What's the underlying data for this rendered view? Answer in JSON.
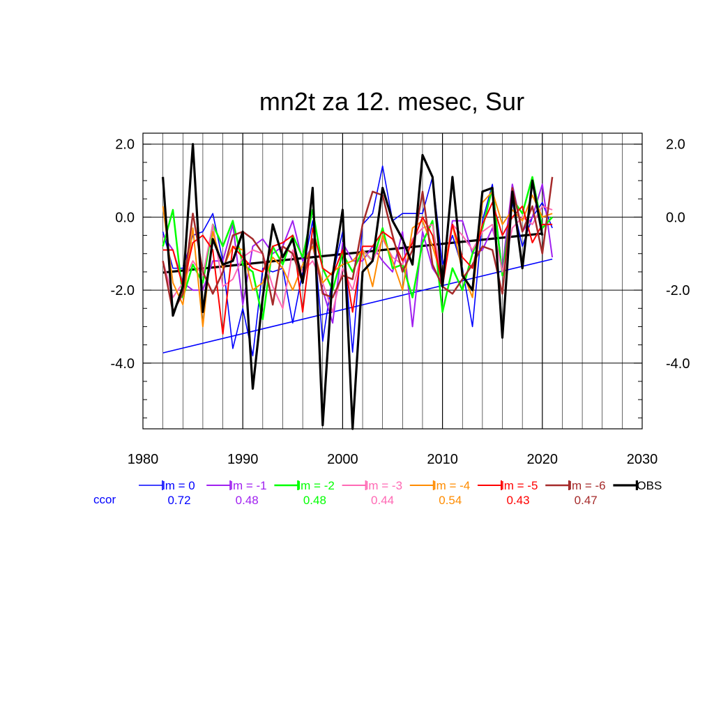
{
  "chart_data": {
    "type": "line",
    "title": "mn2t za 12. mesec, Sur",
    "xlim": [
      1980,
      2030
    ],
    "ylim": [
      -5.8,
      2.3
    ],
    "x_ticks": [
      "1980",
      "1990",
      "2000",
      "2010",
      "2020",
      "2030"
    ],
    "y_ticks": [
      "2.0",
      "0.0",
      "-2.0",
      "-4.0"
    ],
    "grid": true,
    "legend_placement": "below",
    "ccor_label": "ccor",
    "x": [
      1982,
      1983,
      1984,
      1985,
      1986,
      1987,
      1988,
      1989,
      1990,
      1991,
      1992,
      1993,
      1994,
      1995,
      1996,
      1997,
      1998,
      1999,
      2000,
      2001,
      2002,
      2003,
      2004,
      2005,
      2006,
      2007,
      2008,
      2009,
      2010,
      2011,
      2012,
      2013,
      2014,
      2015,
      2016,
      2017,
      2018,
      2019,
      2020,
      2021
    ],
    "series": [
      {
        "name": "lm = 0",
        "ccor": "0.72",
        "color": "#0000ff",
        "width": 1.6,
        "values": [
          -0.4,
          -1.4,
          -1.4,
          -0.5,
          -0.4,
          0.1,
          -1.2,
          -3.6,
          -2.5,
          -3.8,
          -1.4,
          -1.5,
          -1.4,
          -2.9,
          -1.5,
          -0.1,
          -3.4,
          -1.6,
          -0.4,
          -3.7,
          -0.2,
          0.1,
          1.4,
          -0.1,
          0.1,
          0.1,
          0.1,
          1.1,
          -1.3,
          -0.5,
          -1.4,
          -3.0,
          -0.1,
          0.9,
          -1.5,
          0.4,
          -0.8,
          0.0,
          0.4,
          -0.3
        ]
      },
      {
        "name": "lm = -1",
        "ccor": "0.48",
        "color": "#a020f0",
        "width": 2,
        "values": [
          -0.5,
          -0.9,
          -1.8,
          -2.0,
          -2.0,
          -1.2,
          -1.2,
          -0.2,
          -2.4,
          -0.8,
          -0.6,
          -1.0,
          -0.8,
          -0.1,
          -1.2,
          -0.8,
          -2.0,
          -2.9,
          -0.7,
          -1.2,
          -1.2,
          -0.8,
          -1.2,
          -1.5,
          -0.4,
          -3.0,
          -0.4,
          -1.4,
          -1.8,
          -0.1,
          -0.1,
          -1.0,
          -0.9,
          -0.3,
          -1.4,
          0.9,
          -0.4,
          0.0,
          0.9,
          -1.1
        ]
      },
      {
        "name": "lm = -2",
        "ccor": "0.48",
        "color": "#00ff00",
        "width": 2.5,
        "values": [
          -0.8,
          0.2,
          -2.2,
          -1.3,
          -1.8,
          -0.2,
          -0.8,
          -0.1,
          -1.3,
          -1.5,
          -2.8,
          -0.8,
          -1.3,
          -0.5,
          -1.1,
          0.2,
          -1.4,
          -2.0,
          -1.0,
          -1.5,
          -0.9,
          -1.2,
          -0.3,
          -1.4,
          -1.3,
          -2.2,
          -0.7,
          -0.1,
          -2.6,
          -1.4,
          -2.0,
          -1.0,
          -0.3,
          0.8,
          -1.6,
          0.5,
          0.1,
          1.1,
          -0.3,
          0.0
        ]
      },
      {
        "name": "lm = -3",
        "ccor": "0.44",
        "color": "#ff69b4",
        "width": 2,
        "values": [
          -1.2,
          -2.2,
          -1.8,
          -1.2,
          -1.6,
          -0.2,
          -1.9,
          -1.7,
          -1.1,
          -0.9,
          -1.0,
          -1.9,
          -2.5,
          -0.9,
          -1.5,
          -1.2,
          -1.8,
          -2.6,
          -1.4,
          -2.0,
          -0.9,
          -1.2,
          -0.6,
          -1.1,
          -1.3,
          -0.6,
          -0.3,
          -0.2,
          -1.8,
          -0.2,
          -0.5,
          -0.9,
          -0.4,
          -0.2,
          -1.5,
          -0.3,
          0.0,
          -0.2,
          0.3,
          0.2
        ]
      },
      {
        "name": "lm = -4",
        "ccor": "0.54",
        "color": "#ff8c00",
        "width": 2,
        "values": [
          0.3,
          -1.8,
          -2.4,
          -0.3,
          -3.0,
          -0.4,
          -1.4,
          -0.8,
          -0.9,
          -2.0,
          -1.8,
          -1.1,
          -1.4,
          -2.0,
          -1.3,
          -0.8,
          -1.8,
          -1.5,
          -1.3,
          -1.2,
          -0.9,
          -1.9,
          -0.5,
          -1.2,
          -2.0,
          -0.3,
          -0.1,
          -0.8,
          -1.7,
          -0.2,
          -1.5,
          -2.2,
          0.4,
          0.7,
          -0.2,
          0.2,
          -0.1,
          0.6,
          0.0,
          0.1
        ]
      },
      {
        "name": "lm = -5",
        "ccor": "0.43",
        "color": "#ff0000",
        "width": 2,
        "values": [
          -0.9,
          -0.9,
          -1.9,
          -0.7,
          -0.5,
          -0.9,
          -3.2,
          -0.8,
          -1.1,
          -1.4,
          -1.5,
          -0.8,
          -0.7,
          -0.5,
          -2.6,
          -0.3,
          -1.4,
          -1.6,
          -0.9,
          -2.6,
          -0.8,
          -0.8,
          -0.4,
          -0.6,
          -1.2,
          -0.7,
          0.0,
          -0.5,
          -1.9,
          -0.2,
          -1.1,
          -1.4,
          -0.2,
          0.4,
          -0.5,
          0.0,
          0.3,
          -0.7,
          -0.2,
          -0.2
        ]
      },
      {
        "name": "lm = -6",
        "ccor": "0.47",
        "color": "#a52a2a",
        "width": 2.5,
        "values": [
          -1.2,
          -2.6,
          -2.1,
          0.1,
          -1.5,
          -2.1,
          -1.5,
          -0.5,
          -0.4,
          -0.6,
          -1.0,
          -2.4,
          -0.8,
          -1.0,
          -1.8,
          -0.6,
          -2.1,
          -2.2,
          -1.6,
          -1.7,
          -0.2,
          0.7,
          0.6,
          -0.5,
          -1.5,
          -0.9,
          0.7,
          -1.3,
          -1.9,
          -2.1,
          -1.7,
          -1.3,
          -0.8,
          -0.9,
          -2.1,
          0.8,
          -0.4,
          0.3,
          -1.0,
          1.1
        ]
      },
      {
        "name": "OBS",
        "ccor": "",
        "color": "#000000",
        "width": 3.2,
        "values": [
          1.1,
          -2.7,
          -1.9,
          2.0,
          -2.6,
          -0.6,
          -1.3,
          -1.2,
          -0.4,
          -4.7,
          -2.2,
          -0.2,
          -1.1,
          -0.6,
          -1.8,
          0.8,
          -5.7,
          -1.6,
          0.2,
          -5.8,
          -1.5,
          -1.2,
          0.8,
          -0.1,
          -0.6,
          -1.3,
          1.7,
          1.1,
          -1.9,
          1.1,
          -1.6,
          -2.0,
          0.7,
          0.8,
          -3.3,
          0.7,
          -1.4,
          1.0,
          -0.5,
          null
        ]
      }
    ],
    "trend_lines": [
      {
        "series": "lm = 0",
        "x": [
          1982,
          2021
        ],
        "y": [
          -3.72,
          -1.15
        ],
        "color": "#0000ff",
        "width": 1.6
      },
      {
        "series": "OBS",
        "x": [
          1982,
          2020
        ],
        "y": [
          -1.52,
          -0.45
        ],
        "color": "#000000",
        "width": 3.2
      }
    ]
  }
}
